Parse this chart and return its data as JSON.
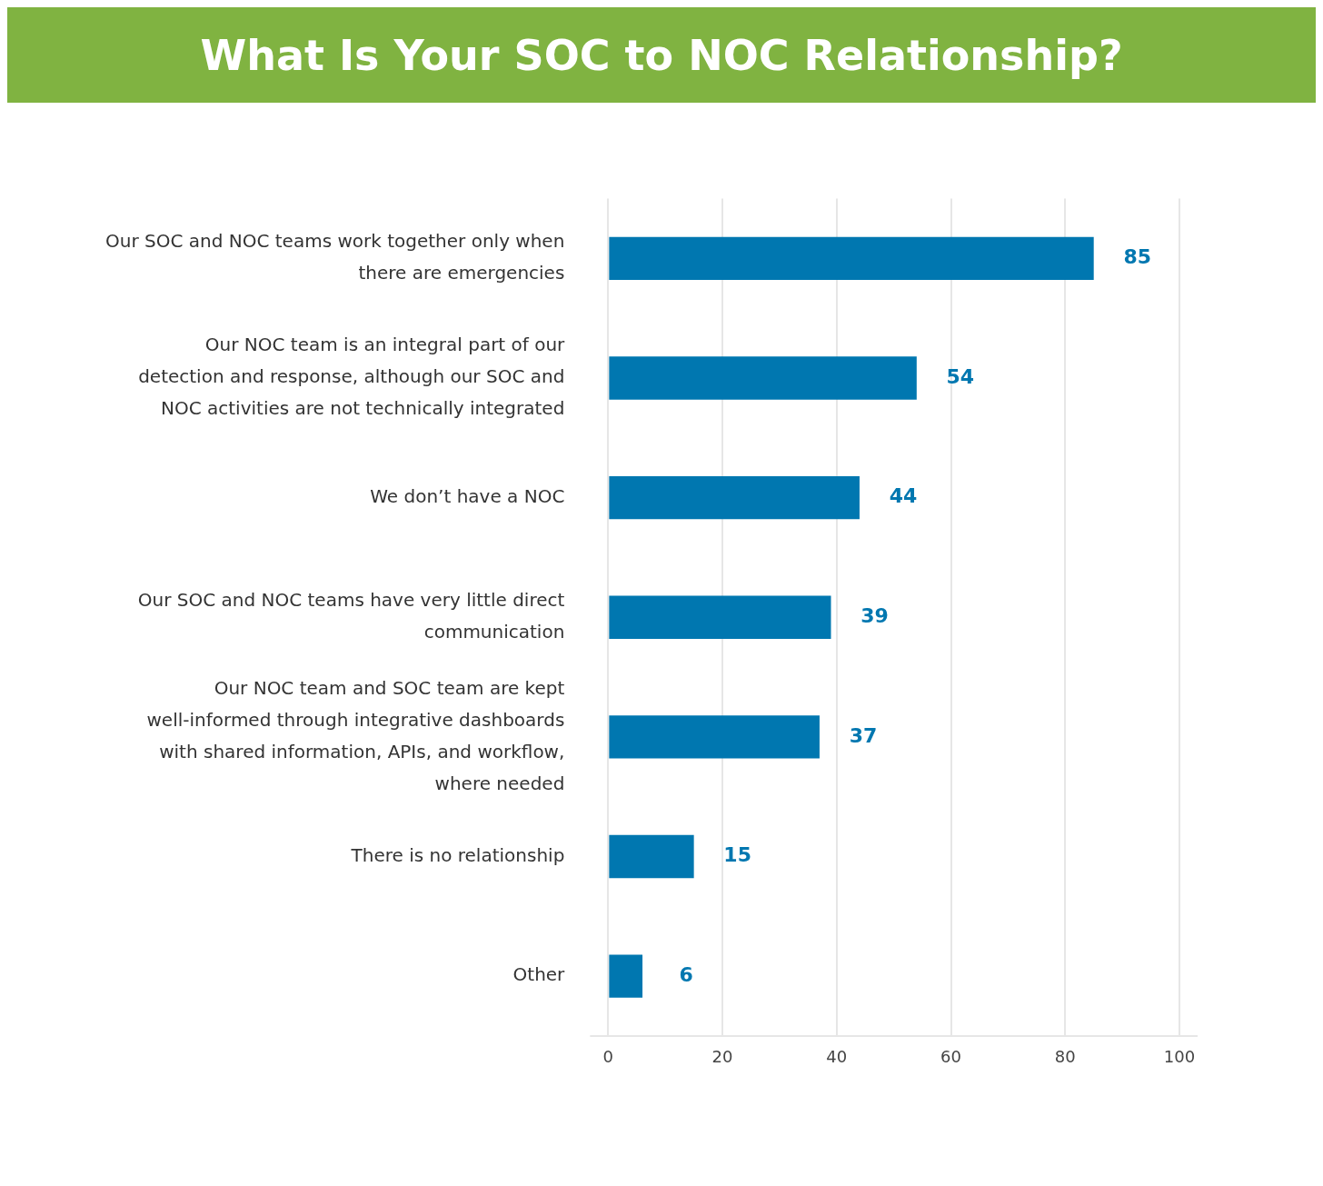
{
  "chart_data": {
    "type": "bar",
    "orientation": "horizontal",
    "title": "What Is Your SOC to NOC Relationship?",
    "categories": [
      "Our SOC and NOC teams work together only when there are emergencies",
      "Our NOC team is an integral part of our detection and response, although our SOC and NOC activities are not technically integrated",
      "We don’t have a NOC",
      "Our SOC and NOC teams have very little direct communication",
      "Our NOC team and SOC team are kept well-informed through integrative dashboards with shared information, APIs, and workflow, where needed",
      "There is no relationship",
      "Other"
    ],
    "values": [
      85,
      54,
      44,
      39,
      37,
      15,
      6
    ],
    "color": "#0077b0",
    "xlim": [
      0,
      100
    ],
    "xticks": [
      0,
      20,
      40,
      60,
      80,
      100
    ],
    "grid": "x",
    "data_labels": true,
    "legend": false
  }
}
